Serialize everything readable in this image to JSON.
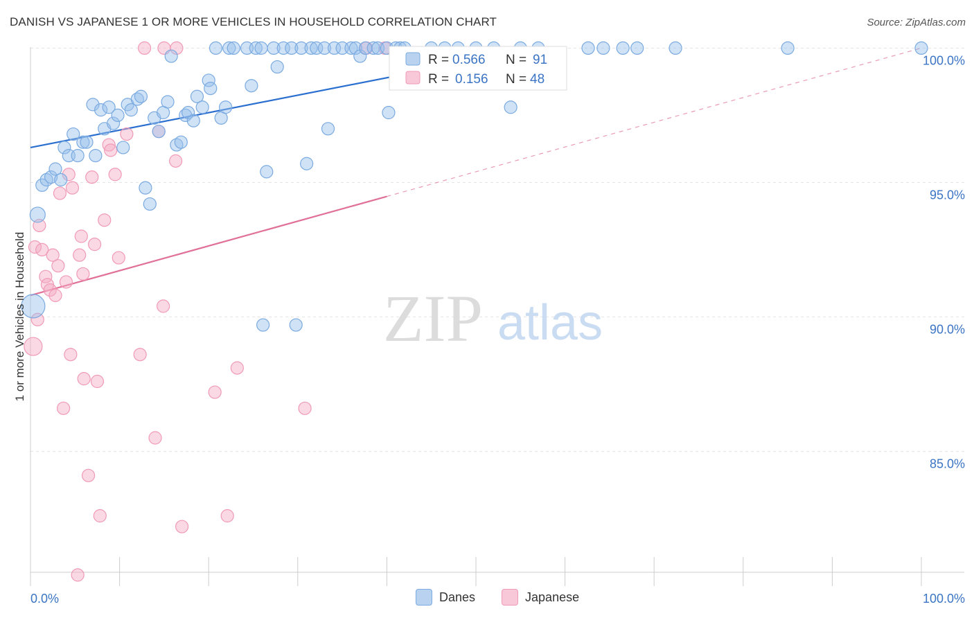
{
  "title": "DANISH VS JAPANESE 1 OR MORE VEHICLES IN HOUSEHOLD CORRELATION CHART",
  "source": "Source: ZipAtlas.com",
  "watermark": {
    "zip": "ZIP",
    "atlas": "atlas"
  },
  "legend_stats": [
    {
      "r_label": "R = ",
      "r_value": "0.566",
      "n_label": "N = ",
      "n_value": "91"
    },
    {
      "r_label": "R = ",
      "r_value": "0.156",
      "n_label": "N = ",
      "n_value": "48"
    }
  ],
  "chart_data": {
    "type": "scatter",
    "title": "DANISH VS JAPANESE 1 OR MORE VEHICLES IN HOUSEHOLD CORRELATION CHART",
    "xlabel": "",
    "ylabel": "1 or more Vehicles in Household",
    "xlim": [
      0,
      100
    ],
    "ylim": [
      80.5,
      100.5
    ],
    "x_tick_labels": [
      "0.0%",
      "100.0%"
    ],
    "y_ticks": [
      85,
      90,
      95,
      100
    ],
    "y_tick_labels": [
      "85.0%",
      "90.0%",
      "95.0%",
      "100.0%"
    ],
    "colors": {
      "danes": "#7aaae0",
      "danes_line": "#2a6fd0",
      "japanese": "#f09ab6",
      "japanese_line": "#e07098",
      "axis_text": "#3b74c4"
    },
    "series": [
      {
        "name": "Danes",
        "R": 0.566,
        "N": 91,
        "trend": {
          "x0": 0,
          "y0": 96.3,
          "x1": 57,
          "y1": 100.0,
          "solid_until": 57
        },
        "points": [
          [
            0.3,
            90.4
          ],
          [
            0.8,
            93.8
          ],
          [
            1.3,
            94.9
          ],
          [
            1.8,
            95.1
          ],
          [
            2.3,
            95.2
          ],
          [
            2.8,
            95.5
          ],
          [
            3.4,
            95.1
          ],
          [
            3.8,
            96.3
          ],
          [
            4.3,
            96.0
          ],
          [
            4.8,
            96.8
          ],
          [
            5.3,
            96.0
          ],
          [
            5.9,
            96.5
          ],
          [
            6.3,
            96.5
          ],
          [
            7.0,
            97.9
          ],
          [
            7.3,
            96.0
          ],
          [
            7.9,
            97.7
          ],
          [
            8.3,
            97.0
          ],
          [
            8.8,
            97.8
          ],
          [
            9.3,
            97.2
          ],
          [
            9.8,
            97.5
          ],
          [
            10.4,
            96.3
          ],
          [
            10.9,
            97.9
          ],
          [
            11.3,
            97.7
          ],
          [
            12.0,
            98.1
          ],
          [
            12.4,
            98.2
          ],
          [
            12.9,
            94.8
          ],
          [
            13.4,
            94.2
          ],
          [
            13.9,
            97.4
          ],
          [
            14.4,
            96.9
          ],
          [
            14.9,
            97.6
          ],
          [
            15.4,
            98.0
          ],
          [
            15.8,
            99.7
          ],
          [
            16.4,
            96.4
          ],
          [
            16.9,
            96.5
          ],
          [
            17.4,
            97.5
          ],
          [
            17.7,
            97.6
          ],
          [
            18.3,
            97.3
          ],
          [
            18.7,
            98.2
          ],
          [
            19.3,
            97.8
          ],
          [
            20.0,
            98.8
          ],
          [
            20.2,
            98.5
          ],
          [
            20.8,
            100.0
          ],
          [
            21.4,
            97.4
          ],
          [
            21.9,
            97.8
          ],
          [
            22.3,
            100.0
          ],
          [
            22.8,
            100.0
          ],
          [
            24.3,
            100.0
          ],
          [
            24.8,
            98.6
          ],
          [
            25.3,
            100.0
          ],
          [
            25.9,
            100.0
          ],
          [
            26.1,
            89.7
          ],
          [
            26.5,
            95.4
          ],
          [
            27.3,
            100.0
          ],
          [
            27.7,
            99.3
          ],
          [
            28.4,
            100.0
          ],
          [
            29.3,
            100.0
          ],
          [
            29.8,
            89.7
          ],
          [
            30.4,
            100.0
          ],
          [
            31.0,
            95.7
          ],
          [
            31.5,
            100.0
          ],
          [
            32.1,
            100.0
          ],
          [
            33.0,
            100.0
          ],
          [
            33.4,
            97.0
          ],
          [
            34.1,
            100.0
          ],
          [
            35.0,
            100.0
          ],
          [
            36.0,
            100.0
          ],
          [
            36.5,
            100.0
          ],
          [
            37.0,
            99.7
          ],
          [
            37.6,
            100.0
          ],
          [
            38.5,
            100.0
          ],
          [
            39.0,
            100.0
          ],
          [
            40.0,
            100.0
          ],
          [
            40.2,
            97.6
          ],
          [
            41.0,
            100.0
          ],
          [
            41.5,
            100.0
          ],
          [
            42.0,
            100.0
          ],
          [
            45.0,
            100.0
          ],
          [
            46.5,
            100.0
          ],
          [
            48.0,
            100.0
          ],
          [
            50.0,
            100.0
          ],
          [
            52.0,
            100.0
          ],
          [
            53.9,
            97.8
          ],
          [
            55.0,
            100.0
          ],
          [
            57.0,
            100.0
          ],
          [
            62.6,
            100.0
          ],
          [
            64.3,
            100.0
          ],
          [
            66.5,
            100.0
          ],
          [
            68.1,
            100.0
          ],
          [
            72.4,
            100.0
          ],
          [
            85.0,
            100.0
          ],
          [
            100.0,
            100.0
          ]
        ]
      },
      {
        "name": "Japanese",
        "R": 0.156,
        "N": 48,
        "trend": {
          "x0": 0,
          "y0": 90.8,
          "x1": 100,
          "y1": 100.0,
          "solid_until": 40
        },
        "points": [
          [
            0.3,
            88.9
          ],
          [
            0.5,
            92.6
          ],
          [
            0.8,
            89.9
          ],
          [
            1.0,
            93.4
          ],
          [
            1.3,
            92.5
          ],
          [
            1.7,
            91.5
          ],
          [
            1.9,
            91.2
          ],
          [
            2.2,
            91.0
          ],
          [
            2.5,
            92.3
          ],
          [
            2.8,
            90.8
          ],
          [
            3.1,
            91.9
          ],
          [
            3.3,
            94.6
          ],
          [
            3.7,
            86.6
          ],
          [
            4.0,
            91.3
          ],
          [
            4.3,
            95.3
          ],
          [
            4.5,
            88.6
          ],
          [
            4.7,
            94.8
          ],
          [
            5.3,
            80.4
          ],
          [
            5.5,
            92.3
          ],
          [
            5.7,
            93.0
          ],
          [
            5.9,
            91.6
          ],
          [
            6.0,
            87.7
          ],
          [
            6.5,
            84.1
          ],
          [
            6.9,
            95.2
          ],
          [
            7.2,
            92.7
          ],
          [
            7.5,
            87.6
          ],
          [
            7.8,
            82.6
          ],
          [
            8.3,
            93.6
          ],
          [
            8.8,
            96.4
          ],
          [
            9.0,
            96.2
          ],
          [
            9.5,
            95.3
          ],
          [
            9.9,
            92.2
          ],
          [
            10.8,
            96.8
          ],
          [
            12.3,
            88.6
          ],
          [
            12.8,
            100.0
          ],
          [
            14.0,
            85.5
          ],
          [
            14.4,
            96.9
          ],
          [
            14.9,
            90.4
          ],
          [
            15.0,
            100.0
          ],
          [
            16.3,
            95.8
          ],
          [
            16.4,
            100.0
          ],
          [
            17.0,
            82.2
          ],
          [
            20.7,
            87.2
          ],
          [
            22.1,
            82.6
          ],
          [
            23.2,
            88.1
          ],
          [
            30.8,
            86.6
          ],
          [
            37.7,
            100.0
          ],
          [
            39.8,
            100.0
          ]
        ]
      }
    ]
  }
}
